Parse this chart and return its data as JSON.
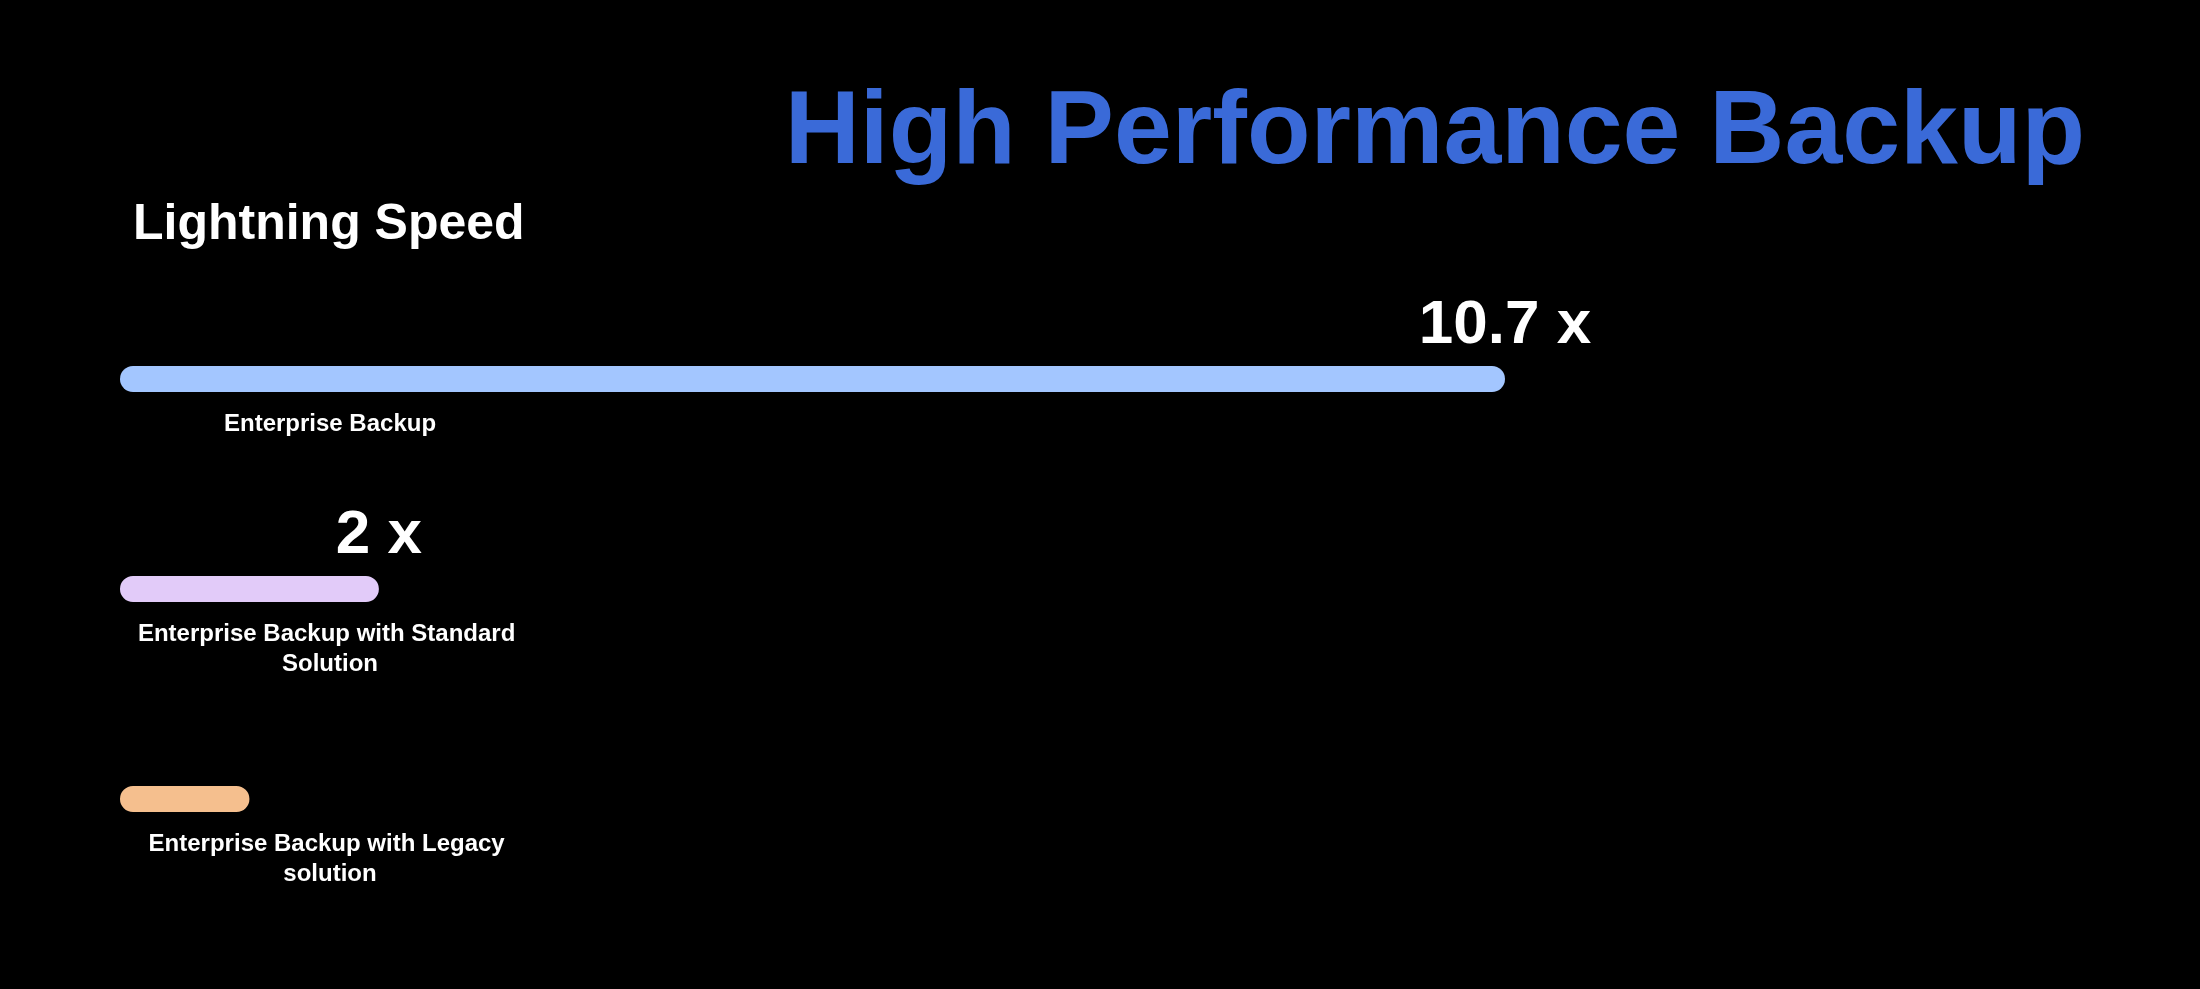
{
  "chart_data": {
    "type": "bar",
    "orientation": "horizontal",
    "title": "High Performance Backup",
    "subtitle": "Lightning Speed",
    "categories": [
      "Enterprise Backup",
      "Enterprise Backup with Standard Solution",
      "Enterprise Backup with Legacy solution"
    ],
    "values": [
      10.7,
      2,
      1
    ],
    "colors": [
      "#a3c6ff",
      "#e2cbf9",
      "#f5bf8e"
    ],
    "value_labels": [
      "10.7 x",
      "2 x",
      null
    ],
    "tick_labels": "y",
    "grid": false
  }
}
